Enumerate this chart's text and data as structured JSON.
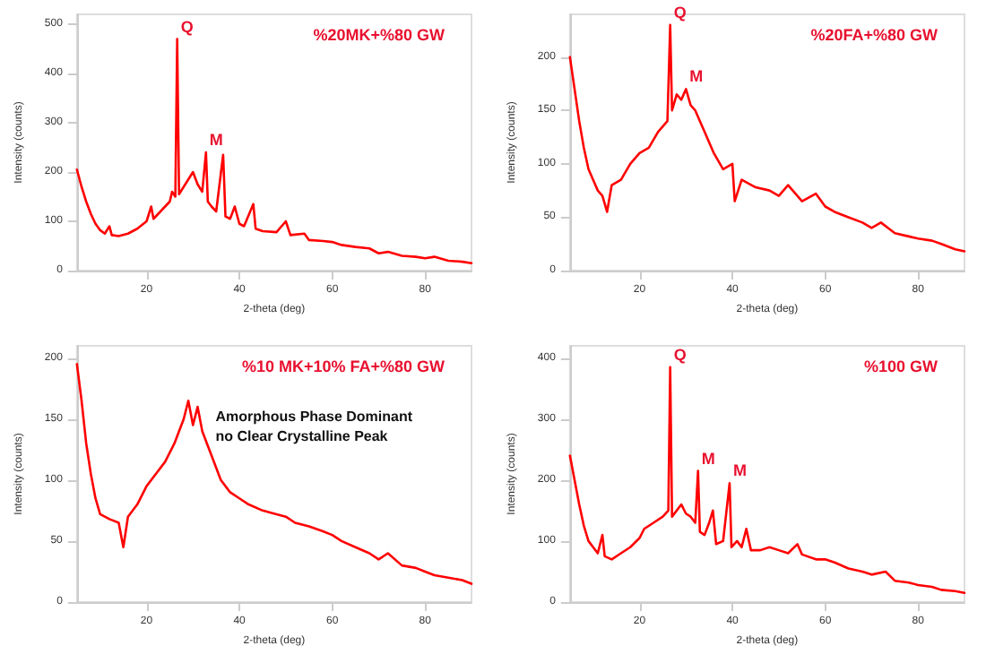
{
  "chart_data": [
    {
      "type": "line",
      "title": "%20MK+%80 GW",
      "xlabel": "2-theta (deg)",
      "ylabel": "Intensity (counts)",
      "xlim": [
        5,
        90
      ],
      "xticks": [
        20,
        40,
        60,
        80
      ],
      "ylim": [
        0,
        520
      ],
      "yticks": [
        0,
        100,
        200,
        300,
        400,
        500
      ],
      "grid": false,
      "marker": "none",
      "line_style": "solid",
      "annotations": [
        {
          "text": "Q",
          "x": 26.6,
          "y": 470
        },
        {
          "text": "M",
          "x": 32.8,
          "y": 240
        }
      ],
      "series": [
        {
          "color": "#ff0000",
          "x": [
            5,
            6,
            7,
            8,
            9,
            10,
            11,
            12,
            12.5,
            14,
            16,
            18,
            20,
            21,
            21.5,
            23,
            25,
            25.5,
            26.2,
            26.6,
            27,
            28,
            29,
            30,
            31,
            32,
            32.8,
            33.2,
            34,
            35,
            36.5,
            37,
            38,
            39,
            40,
            41,
            43,
            43.5,
            45,
            48,
            50,
            51,
            54,
            55,
            58,
            60,
            62,
            65,
            68,
            70,
            72,
            75,
            78,
            80,
            82,
            85,
            88,
            90
          ],
          "values": [
            205,
            170,
            140,
            115,
            95,
            82,
            75,
            90,
            72,
            70,
            75,
            85,
            100,
            130,
            105,
            120,
            140,
            160,
            150,
            470,
            155,
            170,
            185,
            200,
            175,
            160,
            240,
            140,
            130,
            120,
            235,
            110,
            105,
            130,
            95,
            90,
            135,
            85,
            80,
            78,
            100,
            72,
            75,
            62,
            60,
            58,
            52,
            48,
            45,
            35,
            38,
            30,
            28,
            25,
            28,
            20,
            18,
            15
          ]
        }
      ]
    },
    {
      "type": "line",
      "title": "%20FA+%80 GW",
      "xlabel": "2-theta (deg)",
      "ylabel": "Intensity (counts)",
      "xlim": [
        5,
        90
      ],
      "xticks": [
        20,
        40,
        60,
        80
      ],
      "ylim": [
        0,
        240
      ],
      "yticks": [
        0,
        50,
        100,
        150,
        200
      ],
      "grid": false,
      "marker": "none",
      "line_style": "solid",
      "annotations": [
        {
          "text": "Q",
          "x": 26.6,
          "y": 230
        },
        {
          "text": "M",
          "x": 30,
          "y": 170
        }
      ],
      "series": [
        {
          "color": "#ff0000",
          "x": [
            5,
            6,
            7,
            8,
            9,
            10,
            11,
            12,
            13,
            14,
            16,
            18,
            20,
            22,
            24,
            25,
            26,
            26.6,
            27,
            28,
            29,
            30,
            31,
            32,
            33,
            34,
            35,
            36,
            38,
            40,
            40.5,
            42,
            45,
            48,
            50,
            52,
            55,
            58,
            60,
            62,
            65,
            68,
            70,
            72,
            75,
            78,
            80,
            83,
            85,
            88,
            90
          ],
          "values": [
            200,
            170,
            140,
            115,
            95,
            85,
            75,
            70,
            55,
            80,
            85,
            100,
            110,
            115,
            130,
            135,
            140,
            230,
            150,
            165,
            160,
            170,
            155,
            150,
            140,
            130,
            120,
            110,
            95,
            100,
            65,
            85,
            78,
            75,
            70,
            80,
            65,
            72,
            60,
            55,
            50,
            45,
            40,
            45,
            35,
            32,
            30,
            28,
            25,
            20,
            18
          ]
        }
      ]
    },
    {
      "type": "line",
      "title": "%10 MK+10% FA+%80 GW",
      "xlabel": "2-theta (deg)",
      "ylabel": "Intensity (counts)",
      "xlim": [
        5,
        90
      ],
      "xticks": [
        20,
        40,
        60,
        80
      ],
      "ylim": [
        0,
        210
      ],
      "yticks": [
        0,
        50,
        100,
        150,
        200
      ],
      "grid": false,
      "marker": "none",
      "line_style": "solid",
      "annotations": [
        "Amorphous Phase Dominant\nno Clear Crystalline Peak"
      ],
      "series": [
        {
          "color": "#ff0000",
          "x": [
            5,
            6,
            7,
            8,
            9,
            10,
            12,
            14,
            15,
            16,
            18,
            20,
            22,
            24,
            26,
            28,
            29,
            30,
            31,
            32,
            34,
            36,
            38,
            40,
            42,
            45,
            48,
            50,
            52,
            55,
            58,
            60,
            62,
            65,
            68,
            70,
            72,
            75,
            78,
            80,
            82,
            85,
            88,
            90
          ],
          "values": [
            195,
            165,
            130,
            105,
            85,
            72,
            68,
            65,
            45,
            70,
            80,
            95,
            105,
            115,
            130,
            150,
            165,
            145,
            160,
            140,
            120,
            100,
            90,
            85,
            80,
            75,
            72,
            70,
            65,
            62,
            58,
            55,
            50,
            45,
            40,
            35,
            40,
            30,
            28,
            25,
            22,
            20,
            18,
            15
          ]
        }
      ]
    },
    {
      "type": "line",
      "title": "%100 GW",
      "xlabel": "2-theta (deg)",
      "ylabel": "Intensity (counts)",
      "xlim": [
        5,
        90
      ],
      "xticks": [
        20,
        40,
        60,
        80
      ],
      "ylim": [
        0,
        420
      ],
      "yticks": [
        0,
        100,
        200,
        300,
        400
      ],
      "grid": false,
      "marker": "none",
      "line_style": "solid",
      "annotations": [
        {
          "text": "Q",
          "x": 26.6,
          "y": 385
        },
        {
          "text": "M",
          "x": 32.6,
          "y": 215
        },
        {
          "text": "M",
          "x": 39.4,
          "y": 195
        }
      ],
      "series": [
        {
          "color": "#ff0000",
          "x": [
            5,
            6,
            7,
            8,
            9,
            10,
            11,
            12,
            12.5,
            14,
            16,
            18,
            20,
            21,
            23,
            25,
            26.2,
            26.6,
            27,
            28,
            29,
            30,
            31,
            32,
            32.6,
            33,
            34,
            35,
            35.8,
            36.5,
            38,
            39.4,
            39.8,
            41,
            42,
            43,
            44,
            46,
            48,
            50,
            52,
            54,
            55,
            58,
            60,
            62,
            65,
            68,
            70,
            73,
            75,
            78,
            80,
            83,
            85,
            88,
            90
          ],
          "values": [
            240,
            200,
            160,
            125,
            100,
            90,
            80,
            110,
            75,
            70,
            80,
            90,
            105,
            120,
            130,
            140,
            150,
            385,
            140,
            150,
            160,
            145,
            140,
            130,
            215,
            115,
            110,
            130,
            150,
            95,
            100,
            195,
            90,
            100,
            90,
            120,
            85,
            85,
            90,
            85,
            80,
            95,
            78,
            70,
            70,
            65,
            55,
            50,
            45,
            50,
            35,
            32,
            28,
            25,
            20,
            18,
            15
          ]
        }
      ]
    }
  ]
}
